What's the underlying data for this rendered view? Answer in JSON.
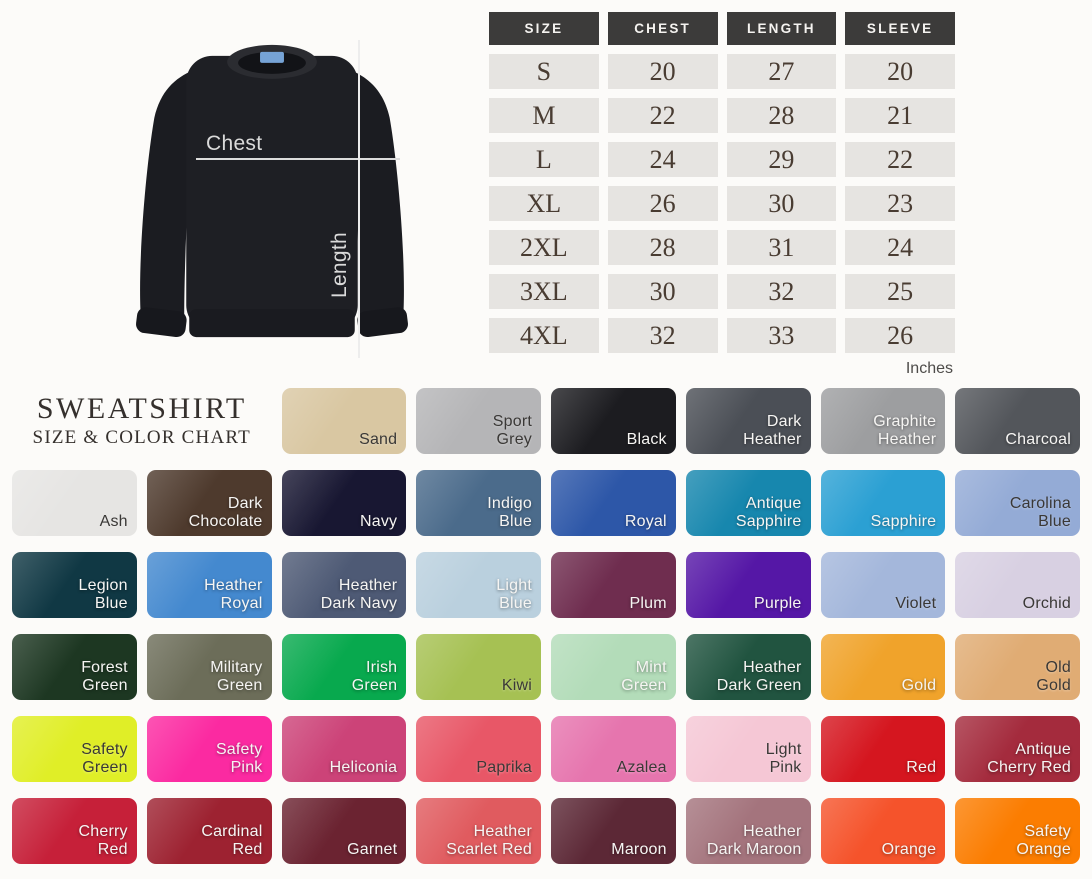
{
  "diagram": {
    "chest_label": "Chest",
    "length_label": "Length"
  },
  "chart_data": {
    "type": "table",
    "title": "Sweatshirt size chart",
    "columns": [
      "SIZE",
      "CHEST",
      "LENGTH",
      "SLEEVE"
    ],
    "rows": [
      [
        "S",
        20,
        27,
        20
      ],
      [
        "M",
        22,
        28,
        21
      ],
      [
        "L",
        24,
        29,
        22
      ],
      [
        "XL",
        26,
        30,
        23
      ],
      [
        "2XL",
        28,
        31,
        24
      ],
      [
        "3XL",
        30,
        32,
        25
      ],
      [
        "4XL",
        32,
        33,
        26
      ]
    ],
    "unit": "Inches"
  },
  "size_table": {
    "unit_label": "Inches"
  },
  "chart_title": {
    "line1": "SWEATSHIRT",
    "line2": "SIZE & COLOR CHART"
  },
  "accent_colors": {
    "table_header_bg": "#3c3b3a",
    "table_cell_bg": "#e6e4e1",
    "collar_tag_blue": "#76a3d6"
  },
  "swatches": [
    {
      "name": "Sand",
      "label": "Sand",
      "hex": "#d9c7a2",
      "dark_text": true
    },
    {
      "name": "Sport Grey",
      "label": "Sport\nGrey",
      "hex": "#b5b5b7",
      "dark_text": true
    },
    {
      "name": "Black",
      "label": "Black",
      "hex": "#1c1c20",
      "dark_text": false
    },
    {
      "name": "Dark Heather",
      "label": "Dark\nHeather",
      "hex": "#4b4f56",
      "dark_text": false
    },
    {
      "name": "Graphite Heather",
      "label": "Graphite\nHeather",
      "hex": "#9d9ea0",
      "dark_text": false
    },
    {
      "name": "Charcoal",
      "label": "Charcoal",
      "hex": "#53565b",
      "dark_text": false
    },
    {
      "name": "Ash",
      "label": "Ash",
      "hex": "#e6e5e3",
      "dark_text": true
    },
    {
      "name": "Dark Chocolate",
      "label": "Dark\nChocolate",
      "hex": "#4e3a2d",
      "dark_text": false
    },
    {
      "name": "Navy",
      "label": "Navy",
      "hex": "#181732",
      "dark_text": false
    },
    {
      "name": "Indigo Blue",
      "label": "Indigo\nBlue",
      "hex": "#4b6b8b",
      "dark_text": false
    },
    {
      "name": "Royal",
      "label": "Royal",
      "hex": "#2d57a8",
      "dark_text": false
    },
    {
      "name": "Antique Sapphire",
      "label": "Antique\nSapphire",
      "hex": "#1787ae",
      "dark_text": false
    },
    {
      "name": "Sapphire",
      "label": "Sapphire",
      "hex": "#2ba0d3",
      "dark_text": false
    },
    {
      "name": "Carolina Blue",
      "label": "Carolina\nBlue",
      "hex": "#94abd6",
      "dark_text": true
    },
    {
      "name": "Legion Blue",
      "label": "Legion\nBlue",
      "hex": "#103844",
      "dark_text": false
    },
    {
      "name": "Heather Royal",
      "label": "Heather\nRoyal",
      "hex": "#4489cf",
      "dark_text": false
    },
    {
      "name": "Heather Dark Navy",
      "label": "Heather\nDark Navy",
      "hex": "#4e5a75",
      "dark_text": false
    },
    {
      "name": "Light Blue",
      "label": "Light\nBlue",
      "hex": "#bad0de",
      "dark_text": false
    },
    {
      "name": "Plum",
      "label": "Plum",
      "hex": "#6f2d4f",
      "dark_text": false
    },
    {
      "name": "Purple",
      "label": "Purple",
      "hex": "#5517a6",
      "dark_text": false
    },
    {
      "name": "Violet",
      "label": "Violet",
      "hex": "#a4b7db",
      "dark_text": true
    },
    {
      "name": "Orchid",
      "label": "Orchid",
      "hex": "#d8d0e2",
      "dark_text": true
    },
    {
      "name": "Forest Green",
      "label": "Forest\nGreen",
      "hex": "#1d3722",
      "dark_text": false
    },
    {
      "name": "Military Green",
      "label": "Military\nGreen",
      "hex": "#6c6d59",
      "dark_text": false
    },
    {
      "name": "Irish Green",
      "label": "Irish\nGreen",
      "hex": "#08a94e",
      "dark_text": false
    },
    {
      "name": "Kiwi",
      "label": "Kiwi",
      "hex": "#a6c153",
      "dark_text": true
    },
    {
      "name": "Mint Green",
      "label": "Mint\nGreen",
      "hex": "#b3dcb9",
      "dark_text": false
    },
    {
      "name": "Heather Dark Green",
      "label": "Heather\nDark Green",
      "hex": "#215440",
      "dark_text": false
    },
    {
      "name": "Gold",
      "label": "Gold",
      "hex": "#f0a32b",
      "dark_text": false
    },
    {
      "name": "Old Gold",
      "label": "Old\nGold",
      "hex": "#e0ac74",
      "dark_text": true
    },
    {
      "name": "Safety Green",
      "label": "Safety\nGreen",
      "hex": "#e0ee27",
      "dark_text": true
    },
    {
      "name": "Safety Pink",
      "label": "Safety\nPink",
      "hex": "#fb2aa1",
      "dark_text": false
    },
    {
      "name": "Heliconia",
      "label": "Heliconia",
      "hex": "#cc4378",
      "dark_text": false
    },
    {
      "name": "Paprika",
      "label": "Paprika",
      "hex": "#e85767",
      "dark_text": true
    },
    {
      "name": "Azalea",
      "label": "Azalea",
      "hex": "#e675ae",
      "dark_text": true
    },
    {
      "name": "Light Pink",
      "label": "Light\nPink",
      "hex": "#f5c7d5",
      "dark_text": true
    },
    {
      "name": "Red",
      "label": "Red",
      "hex": "#d5161f",
      "dark_text": false
    },
    {
      "name": "Antique Cherry Red",
      "label": "Antique\nCherry Red",
      "hex": "#a42b3d",
      "dark_text": false
    },
    {
      "name": "Cherry Red",
      "label": "Cherry\nRed",
      "hex": "#c62039",
      "dark_text": false
    },
    {
      "name": "Cardinal Red",
      "label": "Cardinal\nRed",
      "hex": "#9d2231",
      "dark_text": false
    },
    {
      "name": "Garnet",
      "label": "Garnet",
      "hex": "#6b2331",
      "dark_text": false
    },
    {
      "name": "Heather Scarlet Red",
      "label": "Heather\nScarlet Red",
      "hex": "#e05b5f",
      "dark_text": false
    },
    {
      "name": "Maroon",
      "label": "Maroon",
      "hex": "#5c2836",
      "dark_text": false
    },
    {
      "name": "Heather Dark Maroon",
      "label": "Heather\nDark Maroon",
      "hex": "#a4747d",
      "dark_text": false
    },
    {
      "name": "Orange",
      "label": "Orange",
      "hex": "#f5532b",
      "dark_text": false
    },
    {
      "name": "Safety Orange",
      "label": "Safety\nOrange",
      "hex": "#fb7d01",
      "dark_text": false
    }
  ]
}
